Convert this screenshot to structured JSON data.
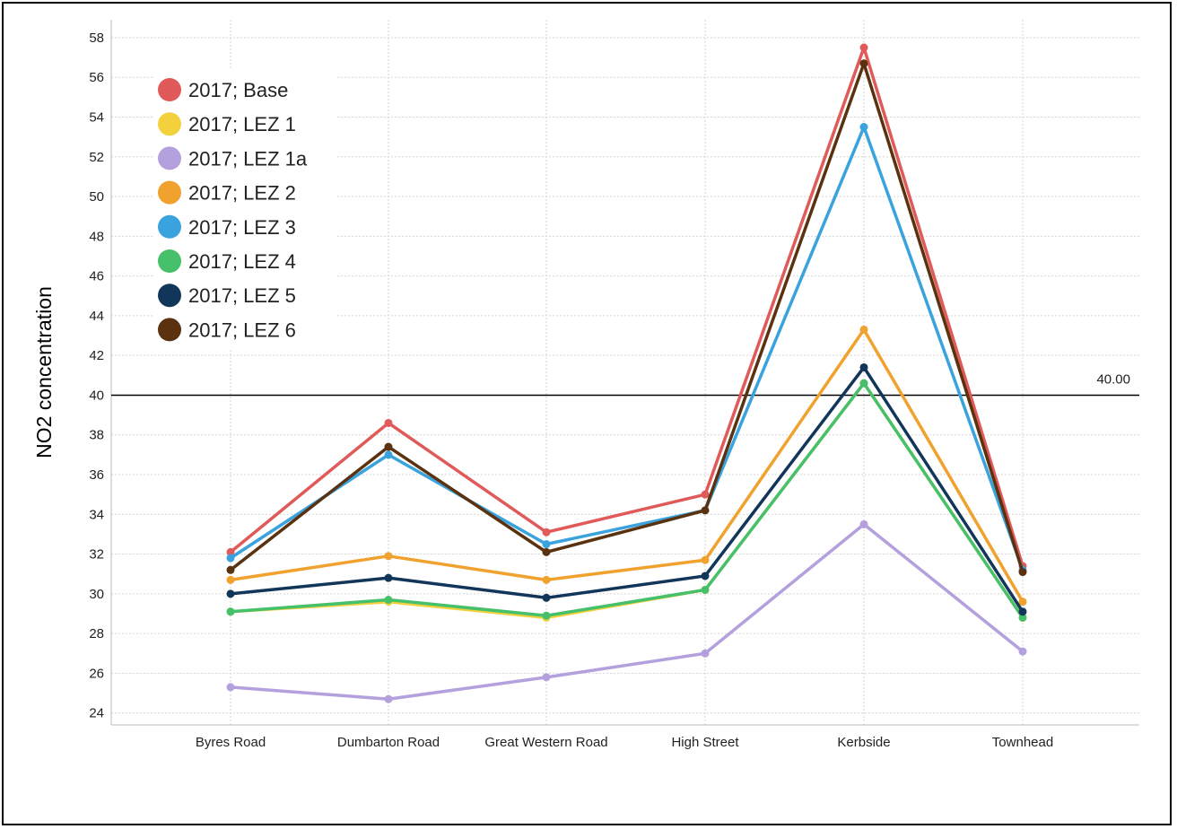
{
  "chart_data": {
    "type": "line",
    "ylabel": "NO2 concentration",
    "xlabel": "",
    "title": "",
    "categories": [
      "Byres Road",
      "Dumbarton Road",
      "Great Western Road",
      "High Street",
      "Kerbside",
      "Townhead"
    ],
    "ylim": [
      23.4,
      58.9
    ],
    "yticks": [
      24,
      26,
      28,
      30,
      32,
      34,
      36,
      38,
      40,
      42,
      44,
      46,
      48,
      50,
      52,
      54,
      56,
      58
    ],
    "grid": true,
    "legend_position": "top-left",
    "reference_line": {
      "value": 40,
      "label": "40.00",
      "color": "#000000"
    },
    "series": [
      {
        "name": "2017; Base",
        "color": "#e05a5a",
        "values": [
          32.1,
          38.6,
          33.1,
          35.0,
          57.5,
          31.4
        ]
      },
      {
        "name": "2017; LEZ 1",
        "color": "#f2d13c",
        "values": [
          29.1,
          29.6,
          28.8,
          30.2,
          40.6,
          28.8
        ]
      },
      {
        "name": "2017; LEZ 1a",
        "color": "#b3a0dd",
        "values": [
          25.3,
          24.7,
          25.8,
          27.0,
          33.5,
          27.1
        ]
      },
      {
        "name": "2017; LEZ 2",
        "color": "#f0a12e",
        "values": [
          30.7,
          31.9,
          30.7,
          31.7,
          43.3,
          29.6
        ]
      },
      {
        "name": "2017; LEZ 3",
        "color": "#3aa3dd",
        "values": [
          31.8,
          37.0,
          32.5,
          34.2,
          53.5,
          31.2
        ]
      },
      {
        "name": "2017; LEZ 4",
        "color": "#46c06a",
        "values": [
          29.1,
          29.7,
          28.9,
          30.2,
          40.6,
          28.8
        ]
      },
      {
        "name": "2017; LEZ 5",
        "color": "#12365a",
        "values": [
          30.0,
          30.8,
          29.8,
          30.9,
          41.4,
          29.1
        ]
      },
      {
        "name": "2017; LEZ 6",
        "color": "#5a3210",
        "values": [
          31.2,
          37.4,
          32.1,
          34.2,
          56.7,
          31.1
        ]
      }
    ]
  }
}
